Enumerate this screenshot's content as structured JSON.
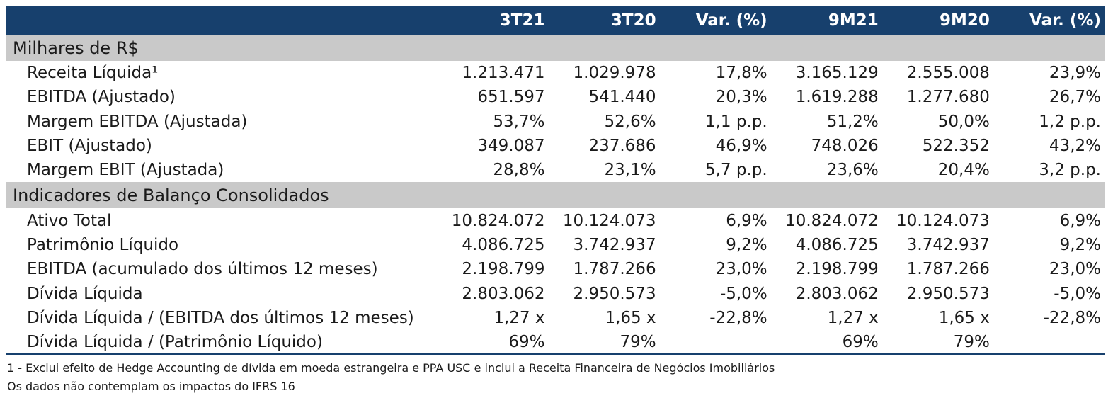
{
  "table": {
    "headers": [
      "",
      "3T21",
      "3T20",
      "Var. (%)",
      "9M21",
      "9M20",
      "Var. (%)"
    ],
    "sections": [
      {
        "title": "Milhares de R$",
        "rows": [
          {
            "label": "Receita Líquida¹",
            "values": [
              "1.213.471",
              "1.029.978",
              "17,8%",
              "3.165.129",
              "2.555.008",
              "23,9%"
            ]
          },
          {
            "label": "EBITDA (Ajustado)",
            "values": [
              "651.597",
              "541.440",
              "20,3%",
              "1.619.288",
              "1.277.680",
              "26,7%"
            ]
          },
          {
            "label": "Margem EBITDA (Ajustada)",
            "values": [
              "53,7%",
              "52,6%",
              "1,1 p.p.",
              "51,2%",
              "50,0%",
              "1,2 p.p."
            ]
          },
          {
            "label": "EBIT (Ajustado)",
            "values": [
              "349.087",
              "237.686",
              "46,9%",
              "748.026",
              "522.352",
              "43,2%"
            ]
          },
          {
            "label": "Margem EBIT (Ajustada)",
            "values": [
              "28,8%",
              "23,1%",
              "5,7 p.p.",
              "23,6%",
              "20,4%",
              "3,2 p.p."
            ]
          }
        ]
      },
      {
        "title": "Indicadores de Balanço Consolidados",
        "rows": [
          {
            "label": "Ativo Total",
            "values": [
              "10.824.072",
              "10.124.073",
              "6,9%",
              "10.824.072",
              "10.124.073",
              "6,9%"
            ]
          },
          {
            "label": "Patrimônio Líquido",
            "values": [
              "4.086.725",
              "3.742.937",
              "9,2%",
              "4.086.725",
              "3.742.937",
              "9,2%"
            ]
          },
          {
            "label": "EBITDA (acumulado dos últimos 12 meses)",
            "values": [
              "2.198.799",
              "1.787.266",
              "23,0%",
              "2.198.799",
              "1.787.266",
              "23,0%"
            ]
          },
          {
            "label": "Dívida Líquida",
            "values": [
              "2.803.062",
              "2.950.573",
              "-5,0%",
              "2.803.062",
              "2.950.573",
              "-5,0%"
            ]
          },
          {
            "label": "Dívida Líquida / (EBITDA dos últimos 12 meses)",
            "values": [
              "1,27 x",
              "1,65 x",
              "-22,8%",
              "1,27 x",
              "1,65 x",
              "-22,8%"
            ]
          },
          {
            "label": "Dívida Líquida / (Patrimônio Líquido)",
            "values": [
              "69%",
              "79%",
              "",
              "69%",
              "79%",
              ""
            ]
          }
        ]
      }
    ]
  },
  "footnotes": [
    "1 - Exclui efeito de Hedge Accounting de dívida em moeda estrangeira e PPA USC e inclui a Receita Financeira de Negócios Imobiliários",
    "Os dados não contemplam os impactos do IFRS 16"
  ],
  "colors": {
    "header_bg": "#17406d",
    "section_bg": "#c9c9c9",
    "header_text": "#ffffff"
  }
}
